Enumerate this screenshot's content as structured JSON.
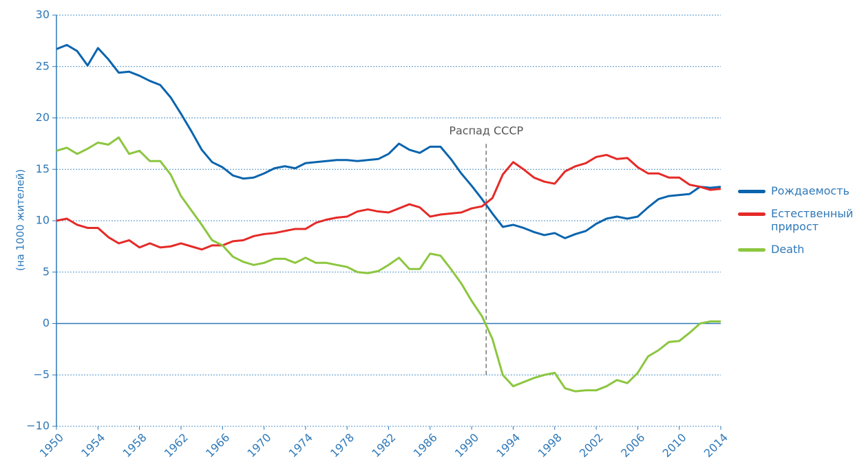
{
  "chart_data": {
    "type": "line",
    "y_label": "(на 1000 жителей)",
    "x": [
      1950,
      1951,
      1952,
      1953,
      1954,
      1955,
      1956,
      1957,
      1958,
      1959,
      1960,
      1961,
      1962,
      1963,
      1964,
      1965,
      1966,
      1967,
      1968,
      1969,
      1970,
      1971,
      1972,
      1973,
      1974,
      1975,
      1976,
      1977,
      1978,
      1979,
      1980,
      1981,
      1982,
      1983,
      1984,
      1985,
      1986,
      1987,
      1988,
      1989,
      1990,
      1991,
      1992,
      1993,
      1994,
      1995,
      1996,
      1997,
      1998,
      1999,
      2000,
      2001,
      2002,
      2003,
      2004,
      2005,
      2006,
      2007,
      2008,
      2009,
      2010,
      2011,
      2012,
      2013,
      2014
    ],
    "series": [
      {
        "name": "Рождаемость",
        "color": "#0a64ad",
        "values": [
          26.7,
          27.1,
          26.5,
          25.1,
          26.8,
          25.7,
          24.4,
          24.5,
          24.1,
          23.6,
          23.2,
          22.0,
          20.4,
          18.7,
          16.9,
          15.7,
          15.2,
          14.4,
          14.1,
          14.2,
          14.6,
          15.1,
          15.3,
          15.1,
          15.6,
          15.7,
          15.8,
          15.9,
          15.9,
          15.8,
          15.9,
          16.0,
          16.5,
          17.5,
          16.9,
          16.6,
          17.2,
          17.2,
          16.0,
          14.6,
          13.4,
          12.1,
          10.7,
          9.4,
          9.6,
          9.3,
          8.9,
          8.6,
          8.8,
          8.3,
          8.7,
          9.0,
          9.7,
          10.2,
          10.4,
          10.2,
          10.4,
          11.3,
          12.1,
          12.4,
          12.5,
          12.6,
          13.3,
          13.2,
          13.3
        ]
      },
      {
        "name": "Естественный прирост",
        "color": "#e52a27",
        "values": [
          10.0,
          10.2,
          9.6,
          9.3,
          9.3,
          8.4,
          7.8,
          8.1,
          7.4,
          7.8,
          7.4,
          7.5,
          7.8,
          7.5,
          7.2,
          7.6,
          7.6,
          8.0,
          8.1,
          8.5,
          8.7,
          8.8,
          9.0,
          9.2,
          9.2,
          9.8,
          10.1,
          10.3,
          10.4,
          10.9,
          11.1,
          10.9,
          10.8,
          11.2,
          11.6,
          11.3,
          10.4,
          10.6,
          10.7,
          10.8,
          11.2,
          11.4,
          12.2,
          14.5,
          15.7,
          15.0,
          14.2,
          13.8,
          13.6,
          14.8,
          15.3,
          15.6,
          16.2,
          16.4,
          16.0,
          16.1,
          15.2,
          14.6,
          14.6,
          14.2,
          14.2,
          13.5,
          13.3,
          13.0,
          13.1
        ]
      },
      {
        "name": "Death",
        "color": "#8cc63f",
        "values": [
          16.8,
          17.1,
          16.5,
          17.0,
          17.6,
          17.4,
          18.1,
          16.5,
          16.8,
          15.8,
          15.8,
          14.5,
          12.4,
          11.0,
          9.6,
          8.1,
          7.6,
          6.5,
          6.0,
          5.7,
          5.9,
          6.3,
          6.3,
          5.9,
          6.4,
          5.9,
          5.9,
          5.7,
          5.5,
          5.0,
          4.9,
          5.1,
          5.7,
          6.4,
          5.3,
          5.3,
          6.8,
          6.6,
          5.3,
          3.9,
          2.2,
          0.7,
          -1.5,
          -5.0,
          -6.1,
          -5.7,
          -5.3,
          -5.0,
          -4.8,
          -6.3,
          -6.6,
          -6.5,
          -6.5,
          -6.1,
          -5.5,
          -5.8,
          -4.8,
          -3.2,
          -2.6,
          -1.8,
          -1.7,
          -0.9,
          0.0,
          0.2,
          0.2
        ]
      }
    ],
    "xlim": [
      1950,
      2014
    ],
    "xticks": [
      1950,
      1954,
      1958,
      1962,
      1966,
      1970,
      1974,
      1978,
      1982,
      1986,
      1990,
      1994,
      1998,
      2002,
      2006,
      2010,
      2014
    ],
    "ylim": [
      -10,
      30
    ],
    "yticks": [
      {
        "value": -10,
        "label": "−10"
      },
      {
        "value": -5,
        "label": "−5"
      },
      0,
      5,
      10,
      15,
      20,
      25,
      30
    ],
    "grid": true,
    "legend": "right",
    "annotation": {
      "text": "Распад СССР",
      "x": 1991.4,
      "y_range": [
        -5,
        17.5
      ]
    }
  }
}
